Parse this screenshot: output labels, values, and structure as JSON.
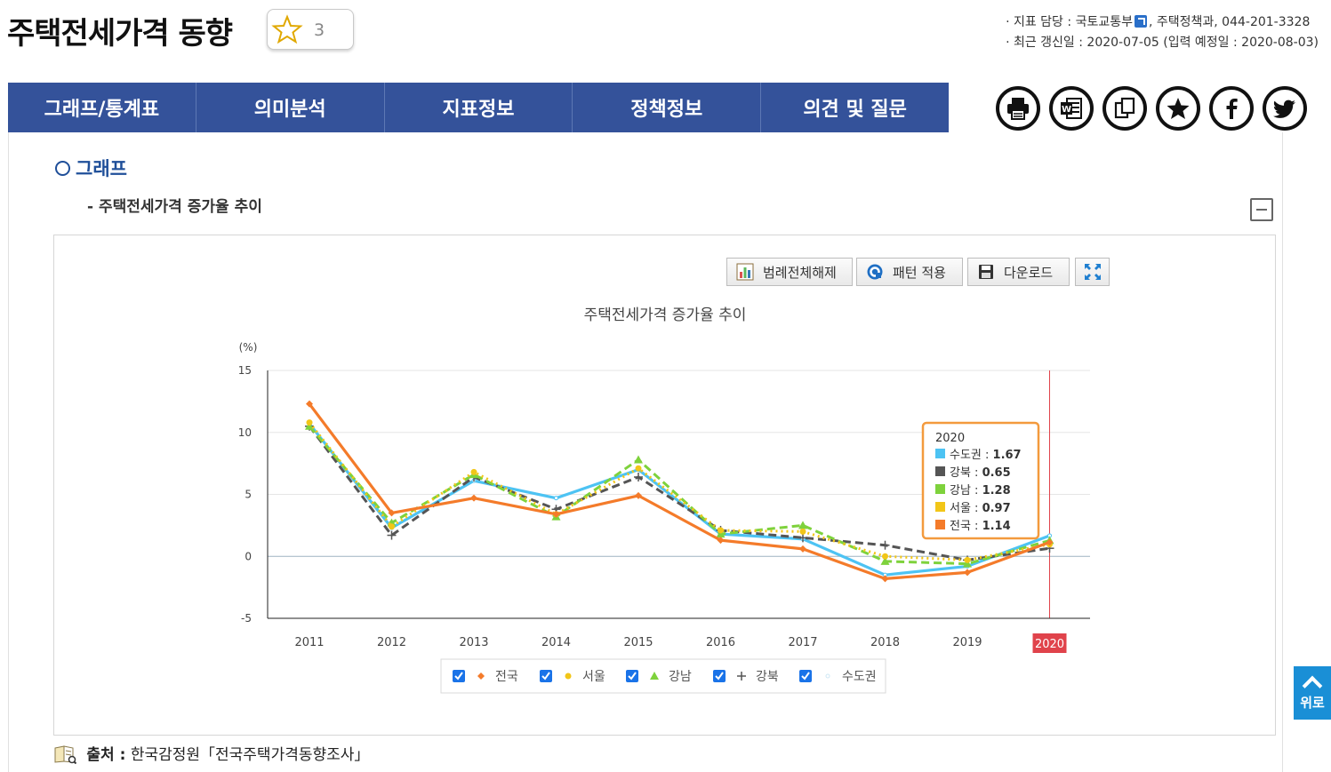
{
  "page": {
    "title": "주택전세가격 동향",
    "favorite_count": "3"
  },
  "meta": {
    "line1_prefix": "· 지표 담당 : ",
    "agency": "국토교통부",
    "line1_suffix": ", 주택정책과, 044-201-3328",
    "line2": "· 최근 갱신일 : 2020-07-05 (입력 예정일 : 2020-08-03)"
  },
  "tabs": [
    "그래프/통계표",
    "의미분석",
    "지표정보",
    "정책정보",
    "의견 및 질문"
  ],
  "share_icons": [
    "print-icon",
    "word-icon",
    "copy-icon",
    "bookmark-star-icon",
    "facebook-icon",
    "twitter-icon"
  ],
  "section": {
    "title": "그래프",
    "subtitle": "- 주택전세가격 증가율 추이"
  },
  "toolbar": {
    "legend_toggle": "범례전체해제",
    "pattern": "패턴 적용",
    "download": "다운로드"
  },
  "source": {
    "label": "출처 :",
    "text": "한국감정원「전국주택가격동향조사」"
  },
  "scroll_top_label": "위로",
  "chart_data": {
    "type": "line",
    "title": "주택전세가격 증가율 추이",
    "ylabel": "(%)",
    "xlabel": "",
    "categories": [
      "2011",
      "2012",
      "2013",
      "2014",
      "2015",
      "2016",
      "2017",
      "2018",
      "2019",
      "2020"
    ],
    "ylim": [
      -5,
      15
    ],
    "yticks": [
      15,
      10,
      5,
      0,
      -5
    ],
    "grid": true,
    "highlight_category": "2020",
    "series": [
      {
        "name": "전국",
        "color": "#f47b2a",
        "marker": "diamond",
        "dash": "solid",
        "values": [
          12.3,
          3.5,
          4.7,
          3.4,
          4.9,
          1.3,
          0.6,
          -1.8,
          -1.3,
          1.14
        ]
      },
      {
        "name": "서울",
        "color": "#f2c618",
        "marker": "circle",
        "dash": "dot",
        "values": [
          10.8,
          2.4,
          6.8,
          3.4,
          7.1,
          2.1,
          2.0,
          0.0,
          -0.3,
          0.97
        ]
      },
      {
        "name": "강남",
        "color": "#7ed23c",
        "marker": "triangle",
        "dash": "dash",
        "values": [
          10.5,
          2.7,
          6.6,
          3.2,
          7.8,
          1.8,
          2.5,
          -0.4,
          -0.6,
          1.28
        ]
      },
      {
        "name": "강북",
        "color": "#555555",
        "marker": "plus",
        "dash": "dash",
        "values": [
          10.5,
          1.7,
          6.4,
          3.8,
          6.4,
          2.1,
          1.5,
          0.9,
          -0.3,
          0.65
        ]
      },
      {
        "name": "수도권",
        "color": "#4dc3f3",
        "marker": "none",
        "dash": "solid",
        "values": [
          10.7,
          2.3,
          6.1,
          4.7,
          7.0,
          1.8,
          1.4,
          -1.5,
          -0.8,
          1.67
        ]
      }
    ],
    "tooltip": {
      "header": "2020",
      "items": [
        {
          "name": "수도권",
          "value": "1.67",
          "color": "#4dc3f3"
        },
        {
          "name": "강북",
          "value": "0.65",
          "color": "#555555"
        },
        {
          "name": "강남",
          "value": "1.28",
          "color": "#7ed23c"
        },
        {
          "name": "서울",
          "value": "0.97",
          "color": "#f2c618"
        },
        {
          "name": "전국",
          "value": "1.14",
          "color": "#f47b2a"
        }
      ]
    },
    "legend": [
      "전국",
      "서울",
      "강남",
      "강북",
      "수도권"
    ]
  }
}
